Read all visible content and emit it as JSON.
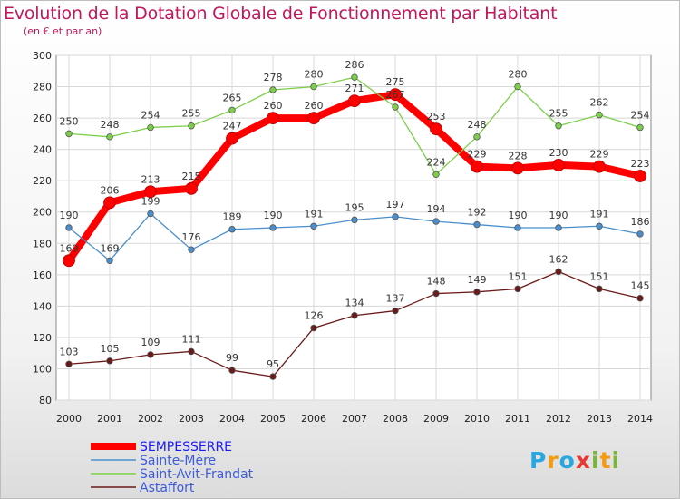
{
  "title": "Evolution de la Dotation Globale de Fonctionnement par Habitant",
  "subtitle": "(en € et par an)",
  "logo": {
    "text": "Proxiti",
    "letters": [
      "P",
      "r",
      "o",
      "x",
      "i",
      "t",
      "i"
    ],
    "colors": [
      "#29a8e0",
      "#f39c12",
      "#29a8e0",
      "#e53935",
      "#7cb342",
      "#f39c12",
      "#7cb342"
    ]
  },
  "chart_data": {
    "type": "line",
    "title": "Evolution de la Dotation Globale de Fonctionnement par Habitant",
    "subtitle": "(en € et par an)",
    "xlabel": "",
    "ylabel": "",
    "x": [
      2000,
      2001,
      2002,
      2003,
      2004,
      2005,
      2006,
      2007,
      2008,
      2009,
      2010,
      2011,
      2012,
      2013,
      2014
    ],
    "ylim": [
      80,
      300
    ],
    "yticks": [
      80,
      100,
      120,
      140,
      160,
      180,
      200,
      220,
      240,
      260,
      280,
      300
    ],
    "grid": true,
    "legend": "bottom-left",
    "series": [
      {
        "name": "SEMPESSERRE",
        "color": "#ff0000",
        "values": [
          169,
          206,
          213,
          215,
          247,
          260,
          260,
          271,
          275,
          253,
          229,
          228,
          230,
          229,
          223
        ],
        "bold": true
      },
      {
        "name": "Sainte-Mère",
        "color": "#4a8fcb",
        "values": [
          190,
          169,
          199,
          176,
          189,
          190,
          191,
          195,
          197,
          194,
          192,
          190,
          190,
          191,
          186
        ]
      },
      {
        "name": "Saint-Avit-Frandat",
        "color": "#7ccf4a",
        "values": [
          250,
          248,
          254,
          255,
          265,
          278,
          280,
          286,
          267,
          224,
          248,
          280,
          255,
          262,
          254
        ]
      },
      {
        "name": "Astaffort",
        "color": "#6b1a1a",
        "values": [
          103,
          105,
          109,
          111,
          99,
          95,
          126,
          134,
          137,
          148,
          149,
          151,
          162,
          151,
          145
        ]
      }
    ]
  }
}
